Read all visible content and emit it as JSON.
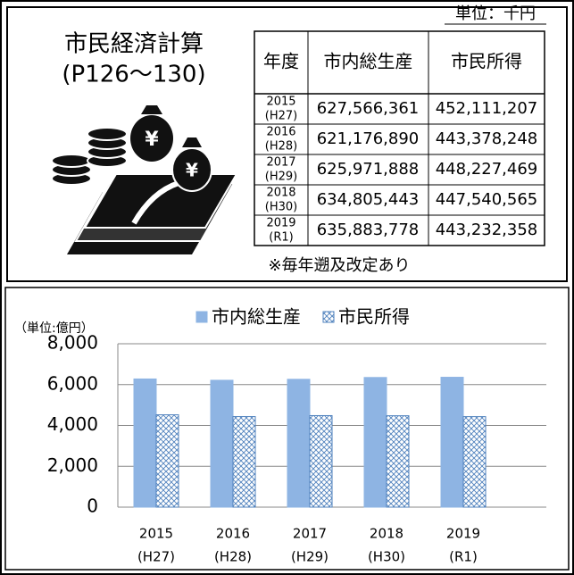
{
  "header": {
    "title": "市民経済計算",
    "subtitle": "(P126〜130)",
    "unit": "単位：千円"
  },
  "table": {
    "columns": [
      "年度",
      "市内総生産",
      "市民所得"
    ],
    "rows": [
      {
        "year": "2015",
        "era": "(H27)",
        "gdp": "627,566,361",
        "income": "452,111,207"
      },
      {
        "year": "2016",
        "era": "(H28)",
        "gdp": "621,176,890",
        "income": "443,378,248"
      },
      {
        "year": "2017",
        "era": "(H29)",
        "gdp": "625,971,888",
        "income": "448,227,469"
      },
      {
        "year": "2018",
        "era": "(H30)",
        "gdp": "634,805,443",
        "income": "447,540,565"
      },
      {
        "year": "2019",
        "era": "(R1)",
        "gdp": "635,883,778",
        "income": "443,232,358"
      }
    ],
    "note": "※毎年遡及改定あり"
  },
  "chart_data": {
    "type": "bar",
    "unit_label": "（単位:億円）",
    "categories": [
      "2015",
      "2016",
      "2017",
      "2018",
      "2019"
    ],
    "category_notes": [
      "(H27)",
      "(H28)",
      "(H29)",
      "(H30)",
      "(R1)"
    ],
    "series": [
      {
        "name": "市内総生産",
        "color": "#8eb4e3",
        "values": [
          6276,
          6212,
          6260,
          6348,
          6359
        ]
      },
      {
        "name": "市民所得",
        "color": "#4f81bd",
        "values": [
          4521,
          4434,
          4482,
          4475,
          4432
        ]
      }
    ],
    "ylim": [
      0,
      8000
    ],
    "yticks": [
      0,
      {
        "value": 2000,
        "label": "2,000"
      },
      {
        "value": 4000,
        "label": "4,000"
      },
      {
        "value": 6000,
        "label": "6,000"
      },
      {
        "value": 8000,
        "label": "8,000"
      }
    ],
    "grid": true
  }
}
